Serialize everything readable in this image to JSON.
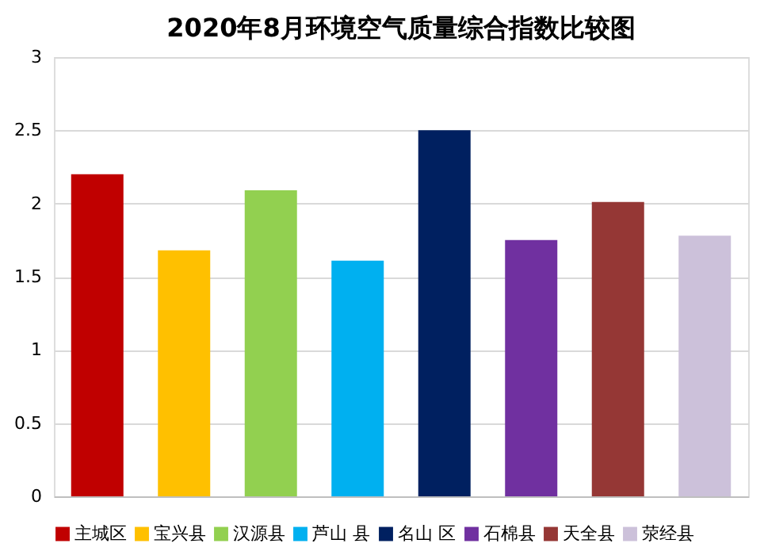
{
  "chart_data": {
    "type": "bar",
    "title": "2020年8月环境空气质量综合指数比较图",
    "categories": [
      null,
      null,
      null,
      null,
      null,
      null,
      null,
      null
    ],
    "series": [
      {
        "name": "主城区",
        "color": "#c00000",
        "values": [
          2.2,
          null,
          null,
          null,
          null,
          null,
          null,
          null
        ]
      },
      {
        "name": "宝兴县",
        "color": "#ffc000",
        "values": [
          null,
          1.68,
          null,
          null,
          null,
          null,
          null,
          null
        ]
      },
      {
        "name": "汉源县",
        "color": "#92d050",
        "values": [
          null,
          null,
          2.09,
          null,
          null,
          null,
          null,
          null
        ]
      },
      {
        "name": "芦山 县",
        "color": "#00b0f0",
        "values": [
          null,
          null,
          null,
          1.61,
          null,
          null,
          null,
          null
        ]
      },
      {
        "name": "名山 区",
        "color": "#002060",
        "values": [
          null,
          null,
          null,
          null,
          2.5,
          null,
          null,
          null
        ]
      },
      {
        "name": "石棉县",
        "color": "#7030a0",
        "values": [
          null,
          null,
          null,
          null,
          null,
          1.75,
          null,
          null
        ]
      },
      {
        "name": "天全县",
        "color": "#953735",
        "values": [
          null,
          null,
          null,
          null,
          null,
          null,
          2.01,
          null
        ]
      },
      {
        "name": "荥经县",
        "color": "#ccc1da",
        "values": [
          null,
          null,
          null,
          null,
          null,
          null,
          null,
          1.78
        ]
      }
    ],
    "ylim": [
      0,
      3
    ],
    "yticks": [
      0,
      0.5,
      1,
      1.5,
      2,
      2.5,
      3
    ],
    "grid": "y",
    "legend": "bottom",
    "tick_labels": "y"
  }
}
